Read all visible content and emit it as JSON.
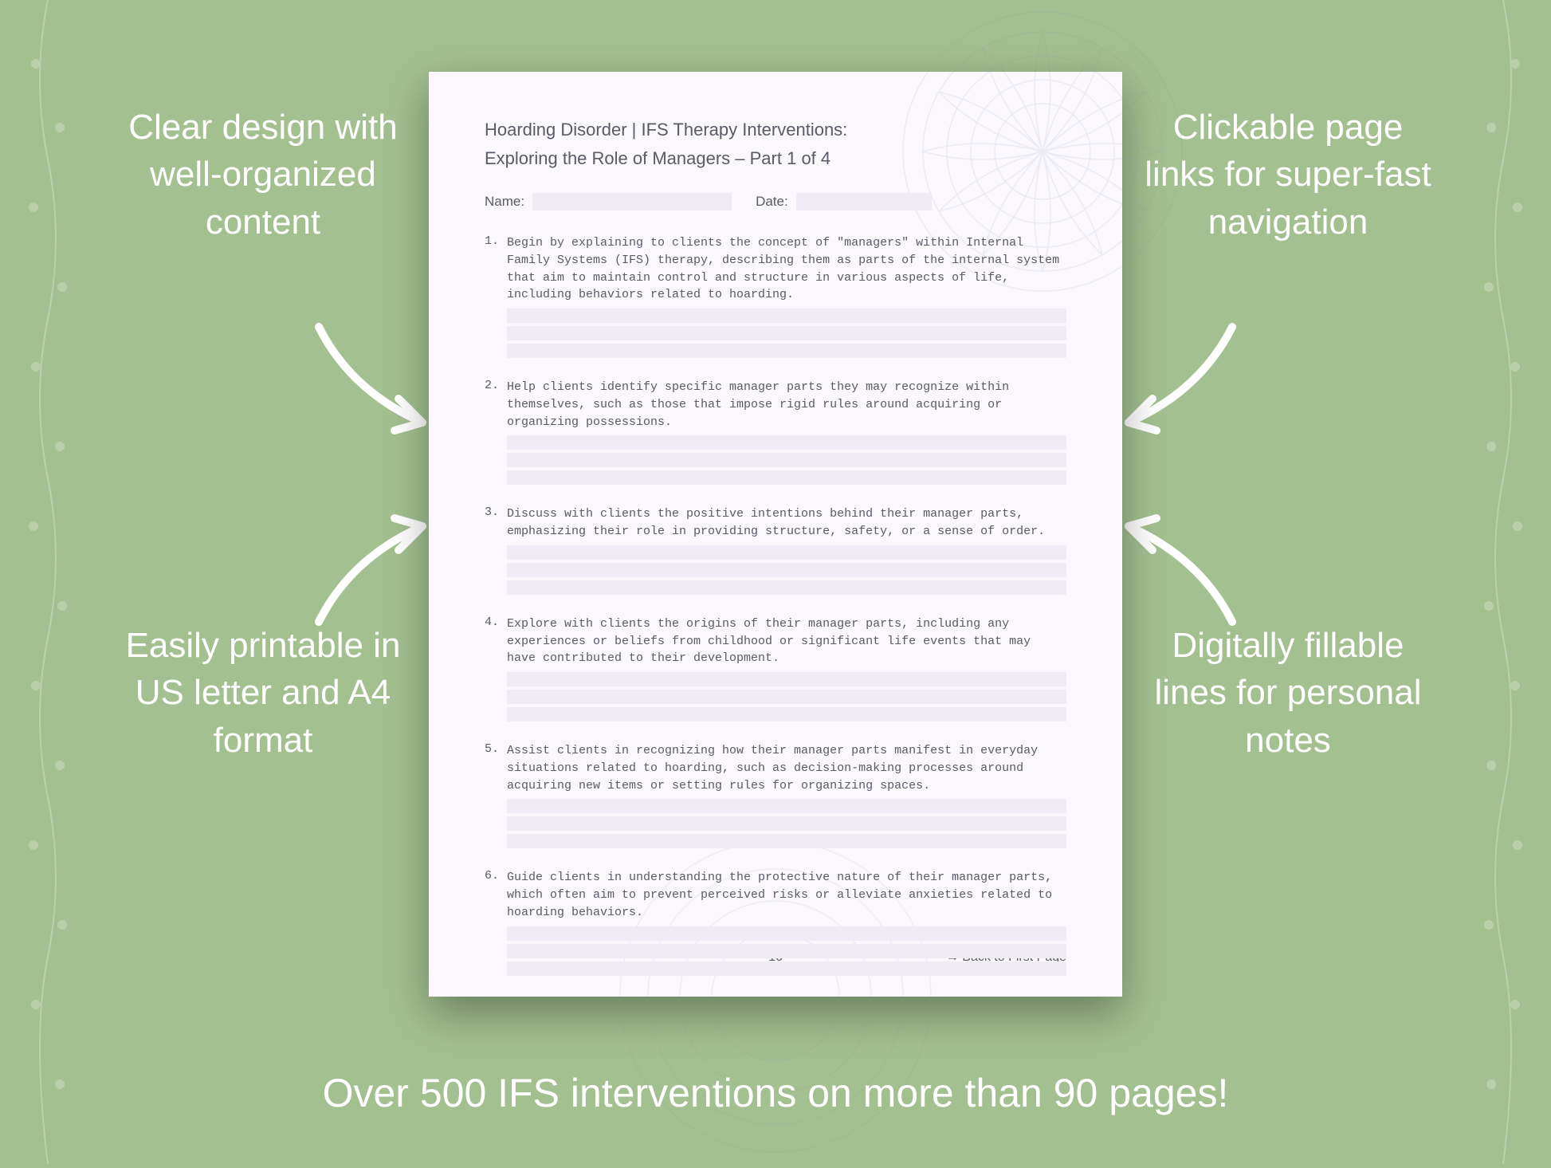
{
  "background_color": "#a3c091",
  "text_color": "#ffffff",
  "callouts": {
    "top_left": "Clear design with well-organized content",
    "top_right": "Clickable page links for super-fast navigation",
    "bottom_left": "Easily printable in US letter and A4 format",
    "bottom_right": "Digitally fillable lines for personal notes"
  },
  "bottom_banner": "Over 500 IFS interventions on more than 90 pages!",
  "document": {
    "page_bg": "#faf8fc",
    "fill_line_color": "#f0ecf6",
    "text_color": "#5a5a68",
    "title_line1": "Hoarding Disorder | IFS Therapy Interventions:",
    "title_line2": "Exploring the Role of Managers  – Part 1 of 4",
    "name_label": "Name:",
    "date_label": "Date:",
    "items": [
      {
        "num": "1.",
        "text": "Begin by explaining to clients the concept of \"managers\" within Internal Family Systems (IFS) therapy, describing them as parts of the internal system that aim to maintain control and structure in various aspects of life, including behaviors related to hoarding."
      },
      {
        "num": "2.",
        "text": "Help clients identify specific manager parts they may recognize within themselves, such as those that impose rigid rules around acquiring or organizing possessions."
      },
      {
        "num": "3.",
        "text": "Discuss with clients the positive intentions behind their manager parts, emphasizing their role in providing structure, safety, or a sense of order."
      },
      {
        "num": "4.",
        "text": "Explore with clients the origins of their manager parts, including any experiences or beliefs from childhood or significant life events that may have contributed to their development."
      },
      {
        "num": "5.",
        "text": "Assist clients in recognizing how their manager parts manifest in everyday situations related to hoarding, such as decision-making processes around acquiring new items or setting rules for organizing spaces."
      },
      {
        "num": "6.",
        "text": "Guide clients in understanding the protective nature of their manager parts, which often aim to prevent perceived risks or alleviate anxieties related to hoarding behaviors."
      }
    ],
    "page_number": "16",
    "back_link": "→ Back to First Page"
  }
}
